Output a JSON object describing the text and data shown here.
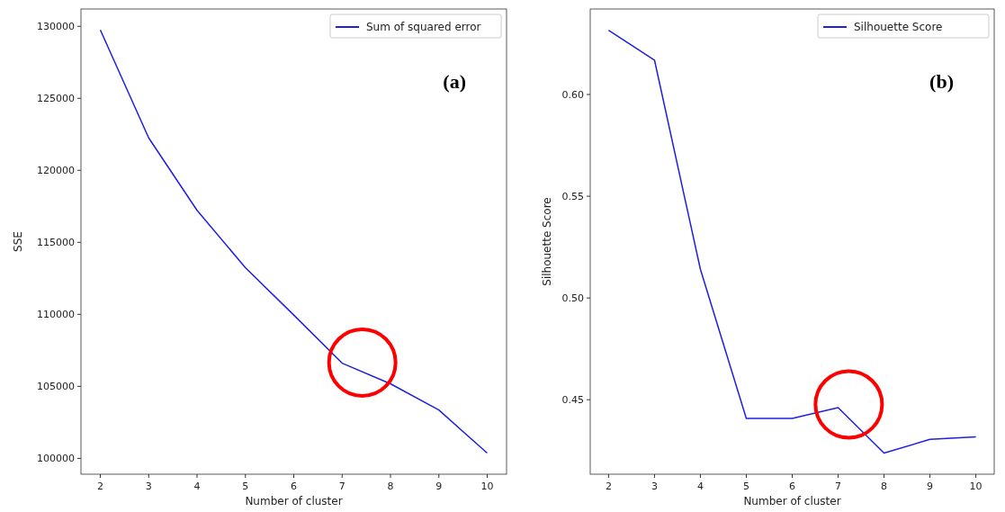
{
  "chart_data": [
    {
      "type": "line",
      "xlabel": "Number of cluster",
      "ylabel": "SSE",
      "annotations": [
        "(a)"
      ],
      "x": [
        2,
        3,
        4,
        5,
        6,
        7,
        8,
        9,
        10
      ],
      "series": [
        {
          "name": "Sum of squared error",
          "color": "#1f1fe0",
          "values": [
            129750,
            122250,
            117220,
            113240,
            109950,
            106610,
            105180,
            103360,
            100370
          ]
        }
      ],
      "xlim": [
        1.6,
        10.4
      ],
      "xticks": [
        2,
        3,
        4,
        5,
        6,
        7,
        8,
        9,
        10
      ],
      "ylim": [
        98900,
        131200
      ],
      "yticks": [
        100000,
        105000,
        110000,
        115000,
        120000,
        125000,
        130000
      ],
      "grid": false,
      "legend": "top right",
      "marker": "none",
      "line_style": "solid"
    },
    {
      "type": "line",
      "xlabel": "Number of cluster",
      "ylabel": "Silhouette Score",
      "annotations": [
        "(b)"
      ],
      "x": [
        2,
        3,
        4,
        5,
        6,
        7,
        8,
        9,
        10
      ],
      "series": [
        {
          "name": "Silhouette Score",
          "color": "#1f1fe0",
          "values": [
            0.6316,
            0.6169,
            0.5141,
            0.4408,
            0.4408,
            0.4461,
            0.4238,
            0.4305,
            0.4318
          ]
        }
      ],
      "xlim": [
        1.6,
        10.4
      ],
      "xticks": [
        2,
        3,
        4,
        5,
        6,
        7,
        8,
        9,
        10
      ],
      "ylim": [
        0.4134,
        0.642
      ],
      "yticks": [
        {
          "value": 0.45,
          "label": "0.45"
        },
        {
          "value": 0.5,
          "label": "0.50"
        },
        {
          "value": 0.55,
          "label": "0.55"
        },
        {
          "value": 0.6,
          "label": "0.60"
        }
      ],
      "grid": false,
      "legend": "top right",
      "marker": "none",
      "line_style": "solid"
    }
  ]
}
